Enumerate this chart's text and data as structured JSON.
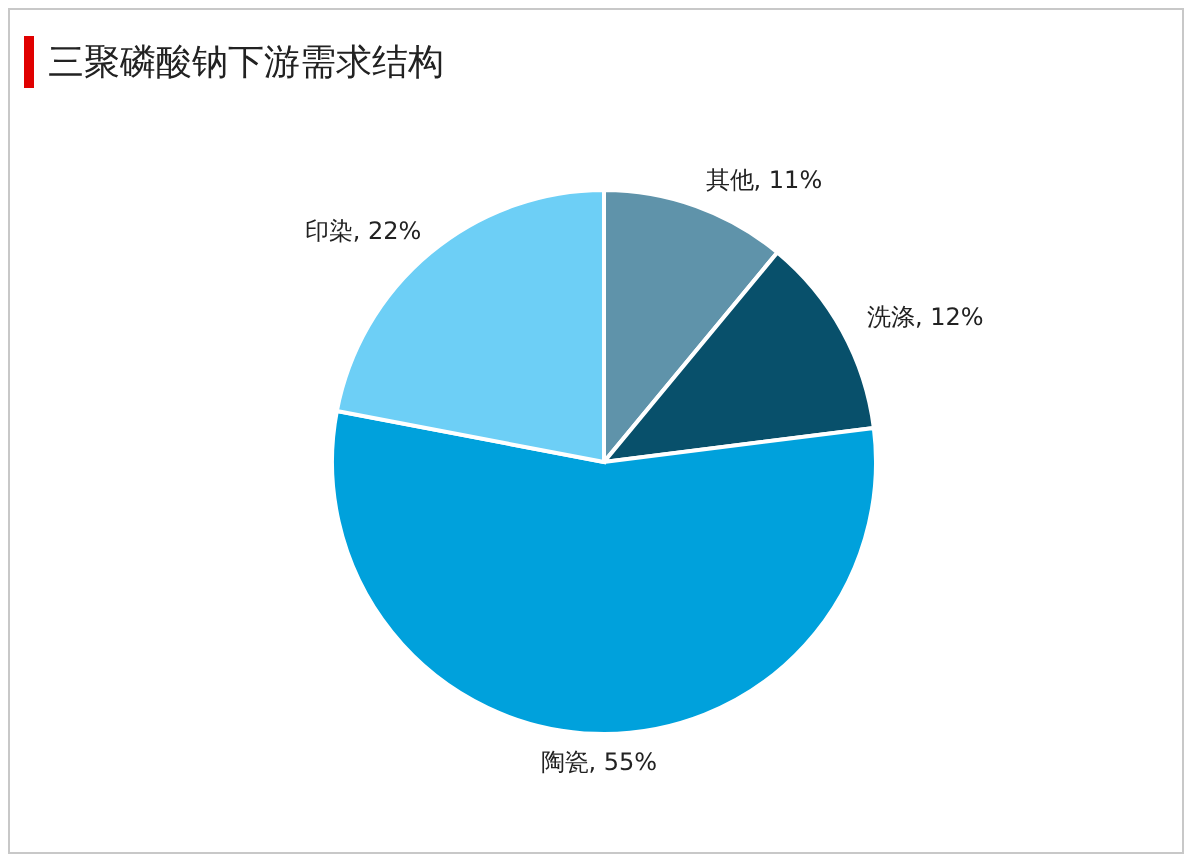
{
  "chart_data": {
    "type": "pie",
    "title": "三聚磷酸钠下游需求结构",
    "categories": [
      "其他",
      "洗涤",
      "陶瓷",
      "印染"
    ],
    "values": [
      11,
      12,
      55,
      22
    ],
    "colors": [
      "#5f93aa",
      "#08506b",
      "#00a1dc",
      "#6dcff6"
    ],
    "value_labels": [
      ", 11%",
      ", 12%",
      ", 55%",
      ", 22%"
    ]
  }
}
